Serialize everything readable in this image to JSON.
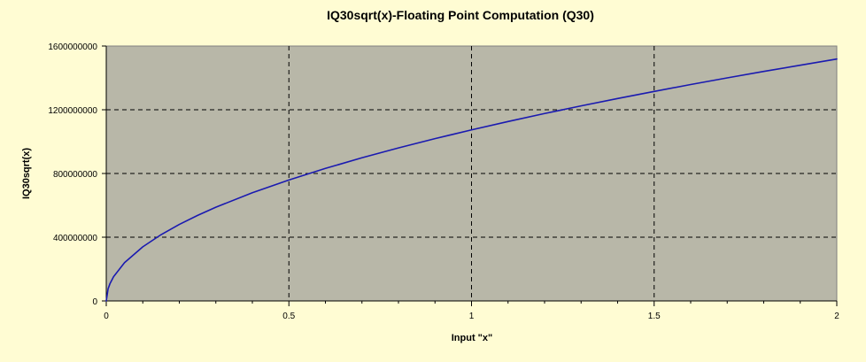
{
  "chart_data": {
    "type": "line",
    "title": "IQ30sqrt(x)-Floating Point Computation (Q30)",
    "xlabel": "Input \"x\"",
    "ylabel": "IQ30sqrt(x)",
    "xlim": [
      0,
      2
    ],
    "ylim": [
      0,
      1600000000
    ],
    "x_ticks": [
      0,
      0.5,
      1,
      1.5,
      2
    ],
    "x_tick_labels": [
      "0",
      "0.5",
      "1",
      "1.5",
      "2"
    ],
    "y_ticks": [
      0,
      400000000,
      800000000,
      1200000000,
      1600000000
    ],
    "y_tick_labels": [
      "0",
      "400000000",
      "800000000",
      "1200000000",
      "1600000000"
    ],
    "grid": true,
    "legend": "none",
    "series": [
      {
        "x": [
          0,
          0.005,
          0.01,
          0.02,
          0.05,
          0.1,
          0.15,
          0.2,
          0.25,
          0.3,
          0.4,
          0.5,
          0.6,
          0.7,
          0.8,
          0.9,
          1.0,
          1.1,
          1.2,
          1.3,
          1.4,
          1.5,
          1.6,
          1.7,
          1.8,
          1.9,
          2.0
        ],
        "values": [
          0,
          75927680,
          107374182,
          151850986,
          240096345,
          339550154,
          415863036,
          480198246,
          536870912,
          588115130,
          679099810,
          759250125,
          831716970,
          898365453,
          960396493,
          1018667712,
          1073741824,
          1126165016,
          1176246170,
          1224261306,
          1270424890,
          1315065613,
          1358201450,
          1399971830,
          1440443928,
          1479728900,
          1518500250
        ],
        "color": "#1a1ab0"
      }
    ],
    "colors": {
      "background": "#fffcd3",
      "plot_area": "#b8b7a8",
      "gridline": "#000000",
      "line": "#1a1ab0"
    }
  }
}
